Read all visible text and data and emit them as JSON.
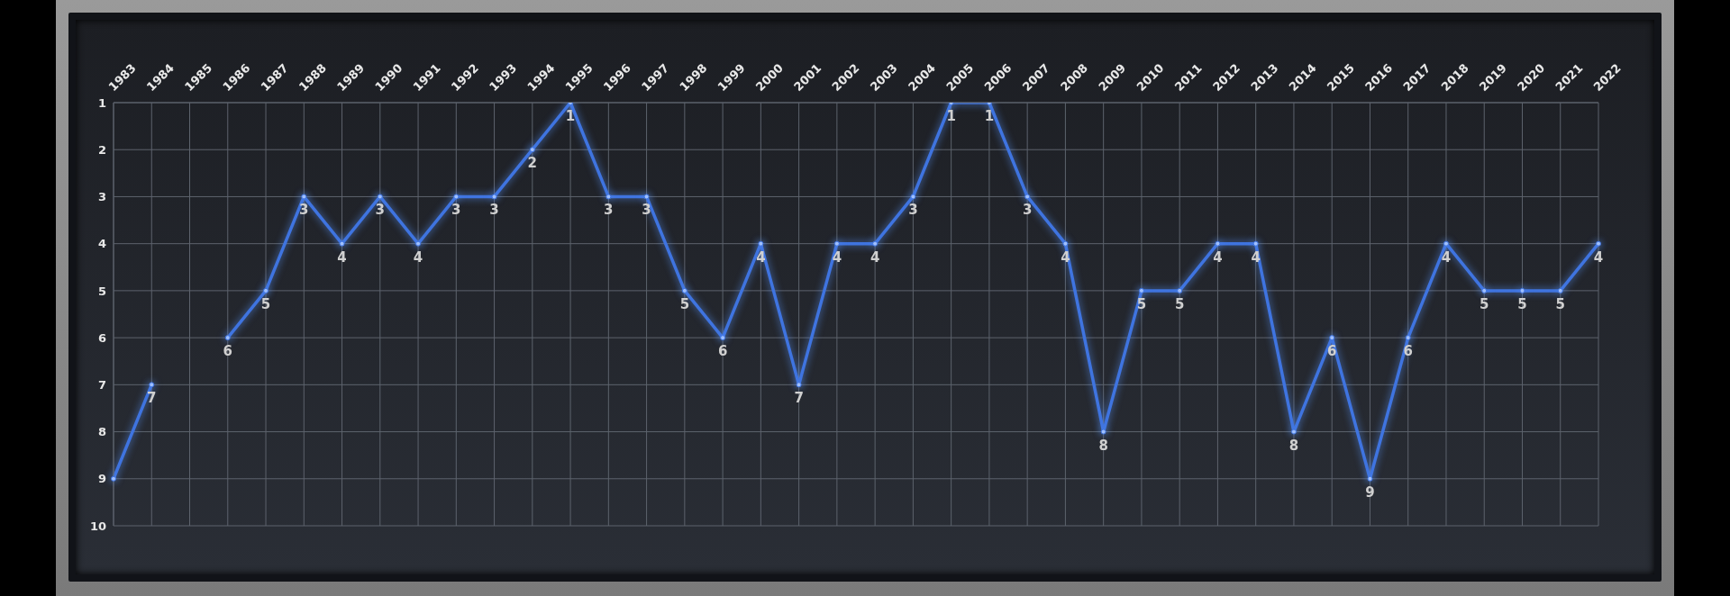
{
  "chart_data": {
    "type": "line",
    "categories": [
      "1983",
      "1984",
      "1985",
      "1986",
      "1987",
      "1988",
      "1989",
      "1990",
      "1991",
      "1992",
      "1993",
      "1994",
      "1995",
      "1996",
      "1997",
      "1998",
      "1999",
      "2000",
      "2001",
      "2002",
      "2003",
      "2004",
      "2005",
      "2006",
      "2007",
      "2008",
      "2009",
      "2010",
      "2011",
      "2012",
      "2013",
      "2014",
      "2015",
      "2016",
      "2017",
      "2018",
      "2019",
      "2020",
      "2021",
      "2022"
    ],
    "series": [
      {
        "color": "#3f74e0",
        "values": [
          9,
          7,
          null,
          6,
          5,
          3,
          4,
          3,
          4,
          3,
          3,
          2,
          1,
          3,
          3,
          5,
          6,
          4,
          7,
          4,
          4,
          3,
          1,
          1,
          3,
          4,
          8,
          5,
          5,
          4,
          4,
          8,
          6,
          9,
          6,
          4,
          5,
          5,
          5,
          4
        ],
        "value_labels": [
          null,
          "7",
          null,
          "6",
          "5",
          "3",
          "4",
          "3",
          "4",
          "3",
          "3",
          "2",
          "1",
          "3",
          "3",
          "5",
          "6",
          "4",
          "7",
          "4",
          "4",
          "3",
          "1",
          "1",
          "3",
          "4",
          "8",
          "5",
          "5",
          "4",
          "4",
          "8",
          "6",
          "9",
          "6",
          "4",
          "5",
          "5",
          "5",
          "4"
        ]
      }
    ],
    "ylim": [
      10,
      1
    ],
    "yticks": [
      1,
      2,
      3,
      4,
      5,
      6,
      7,
      8,
      9,
      10
    ],
    "grid": true,
    "marker": "circle",
    "line_style": "solid"
  }
}
